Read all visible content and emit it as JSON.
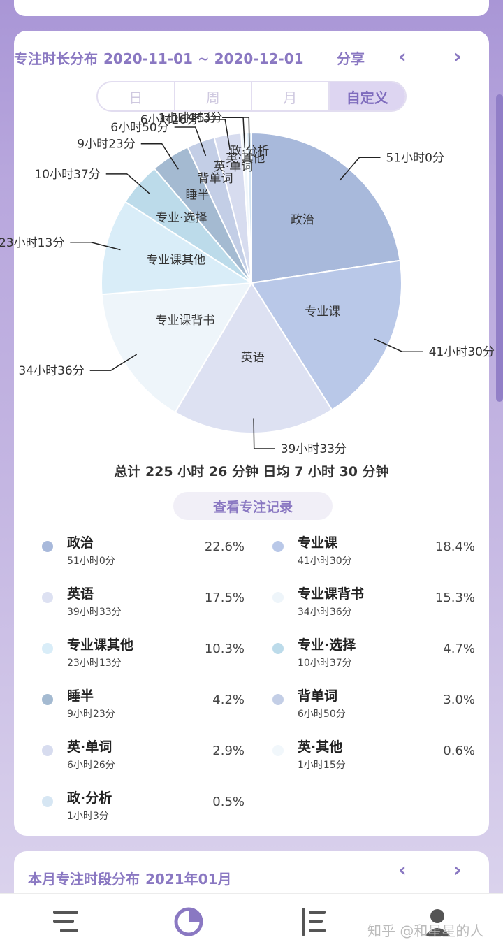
{
  "header": {
    "title": "专注时长分布",
    "range": "2020-11-01 ~ 2020-12-01",
    "share": "分享",
    "prev_icon": "‹",
    "next_icon": "›"
  },
  "tabs": [
    {
      "label": "日",
      "active": false
    },
    {
      "label": "周",
      "active": false
    },
    {
      "label": "月",
      "active": false
    },
    {
      "label": "自定义",
      "active": true
    }
  ],
  "chart_data": {
    "type": "pie",
    "slices": [
      {
        "name": "政治",
        "duration": "51小时0分",
        "percent": 22.6,
        "color": "#a8b9db"
      },
      {
        "name": "专业课",
        "duration": "41小时30分",
        "percent": 18.4,
        "color": "#b9c8e8"
      },
      {
        "name": "英语",
        "duration": "39小时33分",
        "percent": 17.5,
        "color": "#dde1f2"
      },
      {
        "name": "专业课背书",
        "duration": "34小时36分",
        "percent": 15.3,
        "color": "#eef5fa"
      },
      {
        "name": "专业课其他",
        "duration": "23小时13分",
        "percent": 10.3,
        "color": "#d9edf8"
      },
      {
        "name": "专业·选择",
        "duration": "10小时37分",
        "percent": 4.7,
        "color": "#bcdbea"
      },
      {
        "name": "睡半",
        "duration": "9小时23分",
        "percent": 4.2,
        "color": "#a4bad1"
      },
      {
        "name": "背单词",
        "duration": "6小时50分",
        "percent": 3.0,
        "color": "#c3cee6"
      },
      {
        "name": "英·单词",
        "duration": "6小时26分",
        "percent": 2.9,
        "color": "#d7dcef"
      },
      {
        "name": "英·其他",
        "duration": "1小时15分",
        "percent": 0.6,
        "color": "#f1f7fb"
      },
      {
        "name": "政·分析",
        "duration": "1小时3分",
        "percent": 0.5,
        "color": "#d6e6f3"
      }
    ]
  },
  "summary": "总计 225 小时 26 分钟 日均 7 小时 30 分钟",
  "records_button": "查看专注记录",
  "card2": {
    "title": "本月专注时段分布",
    "date": "2021年01月",
    "prev_icon": "‹",
    "next_icon": "›"
  },
  "bottom_nav": [
    {
      "icon": "list-icon"
    },
    {
      "icon": "pie-chart-icon",
      "active": true,
      "color": "#8a78c2"
    },
    {
      "icon": "timeline-icon"
    },
    {
      "icon": "profile-icon"
    }
  ],
  "watermark": "知乎 @和星星的人"
}
